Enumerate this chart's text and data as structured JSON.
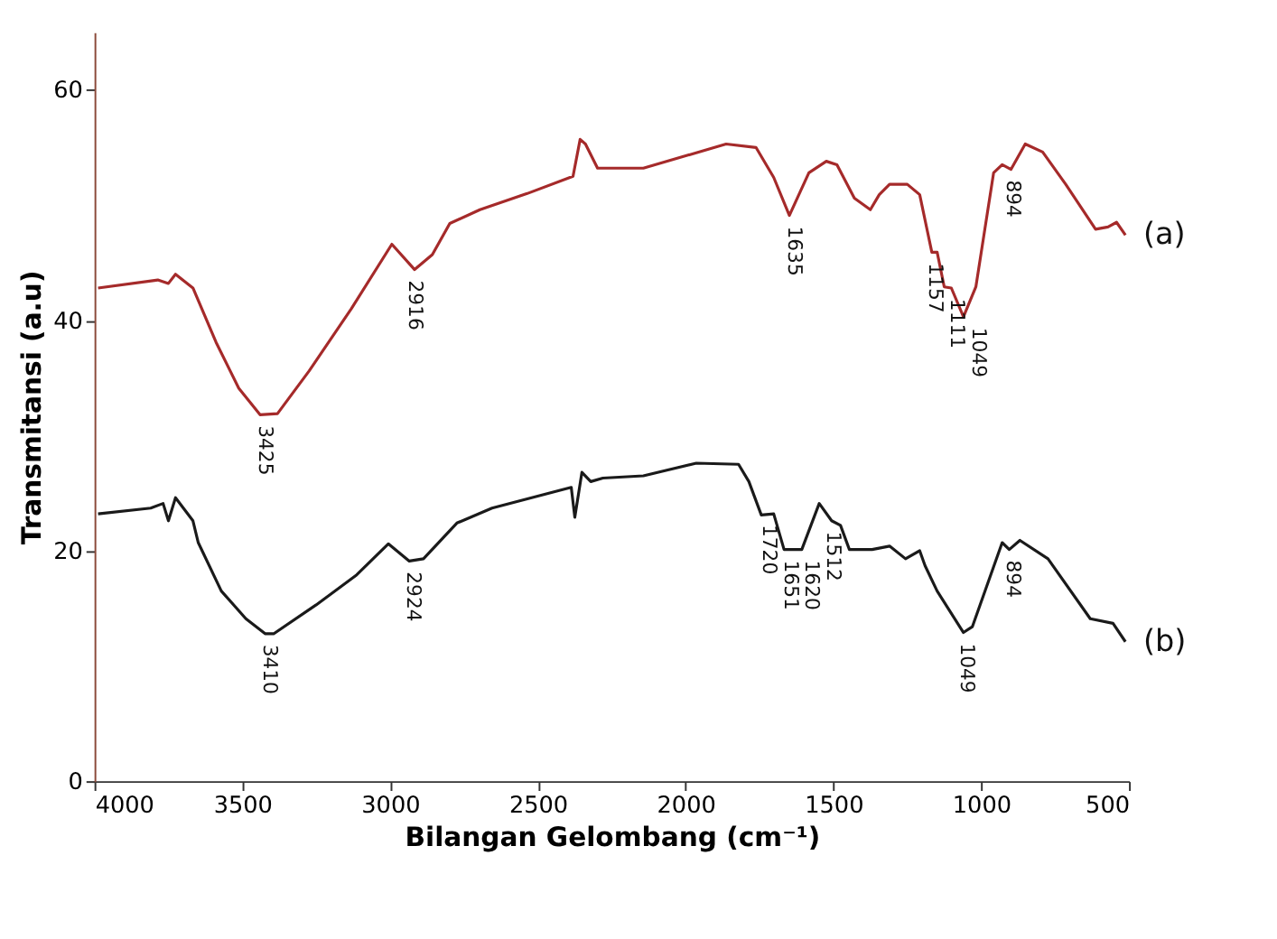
{
  "chart_data": {
    "type": "line",
    "xlabel": "Bilangan Gelombang (cm⁻¹)",
    "ylabel": "Transmitansi (a.u)",
    "xlim": [
      4000,
      500
    ],
    "xticks": [
      4000,
      3500,
      3000,
      2500,
      2000,
      1500,
      1000,
      500
    ],
    "ylim": [
      0,
      65
    ],
    "yticks": [
      0,
      20,
      40,
      60
    ],
    "grid": false,
    "legend": false,
    "line_style": "solid",
    "series": [
      {
        "name": "(a)",
        "color": "#a52a2a",
        "x": [
          3988,
          3786,
          3750,
          3726,
          3667,
          3589,
          3512,
          3440,
          3381,
          3274,
          3131,
          2994,
          2917,
          2857,
          2798,
          2696,
          2536,
          2381,
          2357,
          2339,
          2298,
          2143,
          1863,
          1762,
          1702,
          1649,
          1583,
          1524,
          1488,
          1429,
          1375,
          1345,
          1310,
          1250,
          1208,
          1167,
          1149,
          1125,
          1101,
          1060,
          1018,
          958,
          929,
          899,
          851,
          792,
          714,
          613,
          571,
          542,
          512
        ],
        "values": [
          42.8,
          43.5,
          43.2,
          44.0,
          42.8,
          38.1,
          34.1,
          31.8,
          31.9,
          35.6,
          41.0,
          46.6,
          44.4,
          45.7,
          48.4,
          49.6,
          51.0,
          52.5,
          55.7,
          55.3,
          53.2,
          53.2,
          55.3,
          55.0,
          52.4,
          49.1,
          52.8,
          53.8,
          53.5,
          50.6,
          49.6,
          50.9,
          51.8,
          51.8,
          50.9,
          45.9,
          45.9,
          42.9,
          42.8,
          40.3,
          42.9,
          52.8,
          53.5,
          53.1,
          55.3,
          54.6,
          51.8,
          47.9,
          48.1,
          48.5,
          47.4
        ]
      },
      {
        "name": "(b)",
        "color": "#1a1a1a",
        "x": [
          3988,
          3810,
          3768,
          3750,
          3726,
          3667,
          3649,
          3571,
          3488,
          3423,
          3393,
          3250,
          3113,
          3006,
          2935,
          2887,
          2774,
          2655,
          2387,
          2375,
          2351,
          2321,
          2280,
          2143,
          1964,
          1821,
          1786,
          1744,
          1702,
          1667,
          1607,
          1548,
          1506,
          1476,
          1446,
          1369,
          1310,
          1256,
          1208,
          1190,
          1149,
          1060,
          1030,
          929,
          905,
          869,
          774,
          631,
          554,
          512
        ],
        "values": [
          23.2,
          23.7,
          24.1,
          22.6,
          24.6,
          22.6,
          20.7,
          16.5,
          14.1,
          12.8,
          12.8,
          15.3,
          17.9,
          20.6,
          19.1,
          19.3,
          22.4,
          23.7,
          25.5,
          22.9,
          26.8,
          26.0,
          26.3,
          26.5,
          27.6,
          27.5,
          26.0,
          23.1,
          23.2,
          20.1,
          20.1,
          24.1,
          22.6,
          22.2,
          20.1,
          20.1,
          20.4,
          19.3,
          20.0,
          18.7,
          16.5,
          12.9,
          13.4,
          20.7,
          20.1,
          20.9,
          19.3,
          14.1,
          13.7,
          12.1
        ]
      }
    ],
    "annotations": [
      {
        "text": "3425",
        "x": 3425,
        "y": 31.8
      },
      {
        "text": "2916",
        "x": 2916,
        "y": 44.4
      },
      {
        "text": "1635",
        "x": 1635,
        "y": 49.1
      },
      {
        "text": "1157",
        "x": 1157,
        "y": 45.9
      },
      {
        "text": "1111",
        "x": 1111,
        "y": 42.8
      },
      {
        "text": "1049",
        "x": 1049,
        "y": 40.3
      },
      {
        "text": "894",
        "x": 894,
        "y": 53.1
      },
      {
        "text": "3410",
        "x": 3410,
        "y": 12.8
      },
      {
        "text": "2924",
        "x": 2924,
        "y": 19.1
      },
      {
        "text": "1720",
        "x": 1720,
        "y": 23.2
      },
      {
        "text": "1651",
        "x": 1651,
        "y": 20.1
      },
      {
        "text": "1620",
        "x": 1620,
        "y": 20.1
      },
      {
        "text": "1512",
        "x": 1512,
        "y": 22.6
      },
      {
        "text": "1049",
        "x": 1049,
        "y": 12.9
      },
      {
        "text": "894",
        "x": 894,
        "y": 20.1
      }
    ]
  }
}
